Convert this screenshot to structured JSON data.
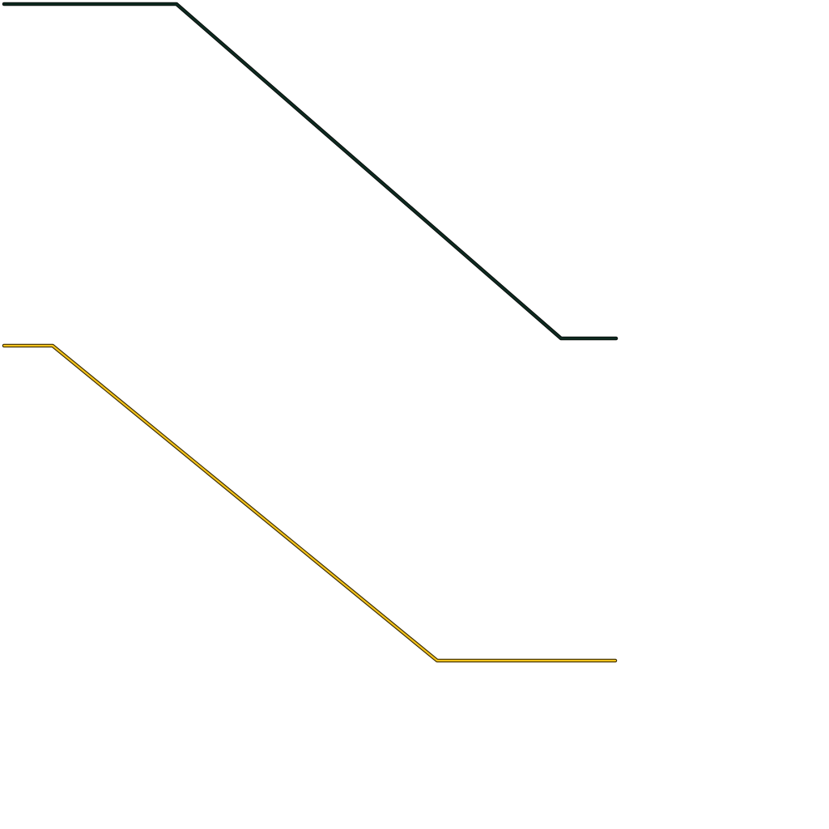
{
  "paths": [
    {
      "name": "dark-green-path",
      "stroke": "#0e2a20",
      "outline": "#000000"
    },
    {
      "name": "gold-path",
      "stroke": "#f2c21b",
      "outline": "#3a2a00"
    }
  ],
  "background": "#ffffff"
}
